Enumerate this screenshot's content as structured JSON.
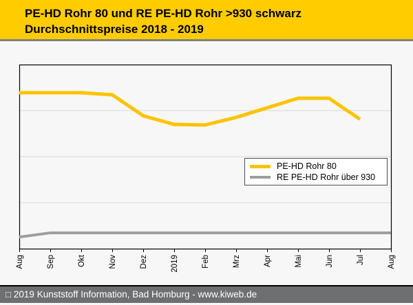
{
  "page": {
    "bg": "#F7F7F7"
  },
  "header": {
    "bg": "#FFCC00",
    "border_color": "#808080",
    "text_color": "#000000",
    "title_line1": "PE-HD Rohr 80 und RE PE-HD Rohr >930 schwarz",
    "title_line2": "Durchschnittspreise 2018 - 2019"
  },
  "legend": {
    "bg": "#FFFFFF",
    "border_color": "#4D4D4D",
    "entries": [
      {
        "label": "PE-HD Rohr 80",
        "color": "#FDC300",
        "thickness": 5
      },
      {
        "label": "RE PE-HD Rohr über 930",
        "color": "#9E9E9E",
        "thickness": 4
      }
    ]
  },
  "footer": {
    "bg": "#6E6F71",
    "border_color": "#000000",
    "text_color": "#FFFFFF",
    "text": "□ 2019 Kunststoff Information, Bad Homburg - www.kiweb.de"
  },
  "chart_data": {
    "type": "line",
    "title": "PE-HD Rohr 80 und RE PE-HD Rohr >930 schwarz — Durchschnittspreise 2018 - 2019",
    "categories": [
      "Aug",
      "Sep",
      "Okt",
      "Nov",
      "Dez",
      "2019",
      "Feb",
      "Mrz",
      "Apr",
      "Mai",
      "Jun",
      "Jul",
      "Aug"
    ],
    "xlabel": "",
    "ylabel": "",
    "y_axis": {
      "labels_visible": false,
      "note": "no price scale shown; values estimated as % of plot height from bottom",
      "range": [
        0,
        100
      ],
      "gridlines_at": [
        25,
        50,
        75
      ]
    },
    "series": [
      {
        "name": "PE-HD Rohr 80",
        "color": "#FDC300",
        "width": 5,
        "values": [
          84.7,
          84.7,
          84.7,
          83.6,
          72.2,
          67.5,
          67.2,
          71.3,
          76.5,
          81.7,
          81.7,
          70.3,
          null
        ]
      },
      {
        "name": "RE PE-HD Rohr über 930",
        "color": "#9E9E9E",
        "width": 4,
        "values": [
          6.3,
          8.6,
          8.6,
          8.6,
          8.6,
          8.6,
          8.6,
          8.6,
          8.6,
          8.6,
          8.6,
          8.6,
          8.6
        ]
      }
    ],
    "plot_border_color": "#000000",
    "gridline_color": "#D9D9D9",
    "tick_color": "#000000",
    "x_label_color": "#000000",
    "legend_position": "lower-right-inside"
  }
}
